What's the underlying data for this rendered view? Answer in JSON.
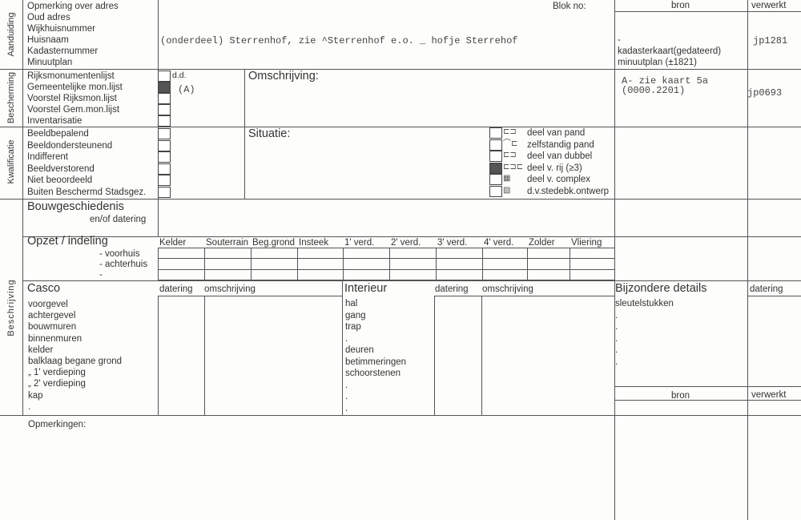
{
  "aanduiding": {
    "section_label": "Aanduiding",
    "fields": [
      "Opmerking over adres",
      "Oud adres",
      "Wijkhuisnummer",
      "Huisnaam",
      "Kadasternummer",
      "Minuutplan"
    ],
    "value": "(onderdeel) Sterrenhof, zie ^Sterrenhof e.o. _ hofje Sterrehof",
    "blok_label": "Blok no:",
    "bron_header": "bron",
    "verwerkt_header": "verwerkt",
    "bron_dash": "-",
    "bron_lines": [
      "kadasterkaart(gedateerd)",
      "minuutplan (±1821)"
    ],
    "verwerkt": "jp1281"
  },
  "bescherming": {
    "section_label": "Bescherming",
    "items": [
      {
        "label": "Rijksmonumentenlijst",
        "checked": false
      },
      {
        "label": "Gemeentelijke mon.lijst",
        "checked": true
      },
      {
        "label": "Voorstel Rijksmon.lijst",
        "checked": false
      },
      {
        "label": "Voorstel Gem.mon.lijst",
        "checked": false
      },
      {
        "label": "Inventarisatie",
        "checked": false
      }
    ],
    "dd_label": "d.d.",
    "dd_value": "(A)",
    "omschrijving_label": "Omschrijving:",
    "bron_lines": [
      "A- zie kaart 5a",
      "(0000.2201)"
    ],
    "verwerkt": "jp0693"
  },
  "kwalificatie": {
    "section_label": "Kwalificatie",
    "items": [
      {
        "label": "Beeldbepalend",
        "checked": false
      },
      {
        "label": "Beeldondersteunend",
        "checked": false
      },
      {
        "label": "Indifferent",
        "checked": false
      },
      {
        "label": "Beeldverstorend",
        "checked": false
      },
      {
        "label": "Niet beoordeeld",
        "checked": false
      },
      {
        "label": "Buiten Beschermd Stadsgez.",
        "checked": false
      }
    ],
    "situatie_label": "Situatie:",
    "situatie": [
      {
        "label": "deel van pand",
        "checked": false
      },
      {
        "label": "zelfstandig pand",
        "checked": false
      },
      {
        "label": "deel van dubbel",
        "checked": false
      },
      {
        "label": "deel v. rij  (≥3)",
        "checked": true
      },
      {
        "label": "deel v. complex",
        "checked": false
      },
      {
        "label": "d.v.stedebk.ontwerp",
        "checked": false
      }
    ]
  },
  "beschrijving": {
    "section_label": "Beschrijving",
    "bouwgeschiedenis": "Bouwgeschiedenis",
    "bouwgeschiedenis_sub": "en/of datering",
    "opzet": "Opzet / indeling",
    "opzet_rows": [
      "-  voorhuis",
      "-  achterhuis",
      "-"
    ],
    "opzet_columns": [
      "Kelder",
      "Souterrain",
      "Beg.grond",
      "Insteek",
      "1' verd.",
      "2' verd.",
      "3' verd.",
      "4' verd.",
      "Zolder",
      "Vliering"
    ],
    "casco": "Casco",
    "casco_datering": "datering",
    "casco_omschrijving": "omschrijving",
    "casco_items": [
      "voorgevel",
      "achtergevel",
      "bouwmuren",
      "binnenmuren",
      "kelder",
      "balklaag begane grond",
      "„        1' verdieping",
      "„        2' verdieping",
      "kap",
      "."
    ],
    "interieur": "Interieur",
    "interieur_datering": "datering",
    "interieur_omschrijving": "omschrijving",
    "interieur_items": [
      "hal",
      "gang",
      "trap",
      ".",
      "deuren",
      "betimmeringen",
      "schoorstenen",
      ".",
      ".",
      "."
    ],
    "bijzondere": "Bijzondere details",
    "bijzondere_datering": "datering",
    "bijzondere_items": [
      "sleutelstukken",
      ".",
      ".",
      ".",
      ".",
      "."
    ],
    "bron_header": "bron",
    "verwerkt_header": "verwerkt"
  },
  "opmerkingen": "Opmerkingen:"
}
